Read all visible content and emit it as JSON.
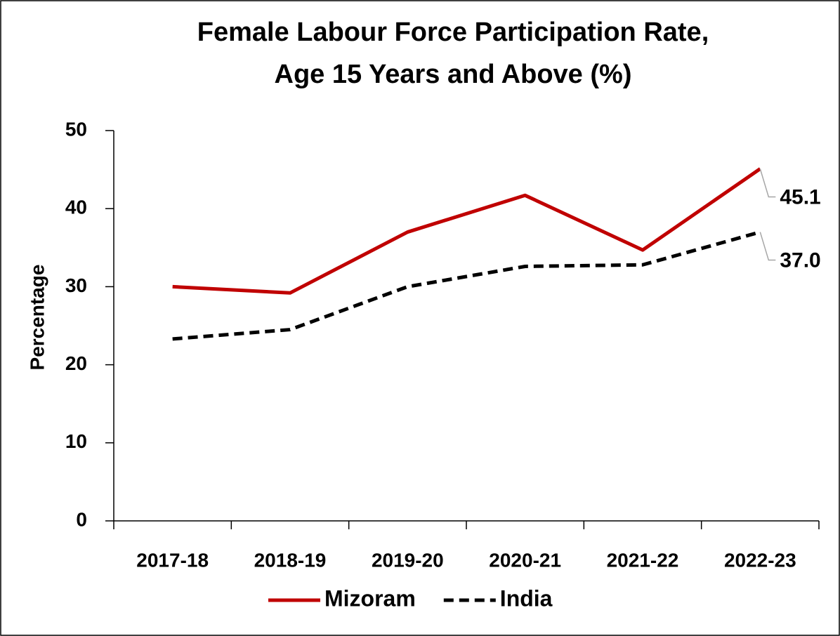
{
  "chart_data": {
    "type": "line",
    "title": [
      "Female Labour Force Participation Rate,",
      "Age 15 Years and Above (%)"
    ],
    "y_label": "Percentage",
    "categories": [
      "2017-18",
      "2018-19",
      "2019-20",
      "2020-21",
      "2021-22",
      "2022-23"
    ],
    "series": [
      {
        "name": "Mizoram",
        "color": "#c00000",
        "dash": false,
        "values": [
          30.0,
          29.2,
          37.0,
          41.7,
          34.7,
          45.1
        ],
        "value_labels": [
          null,
          null,
          null,
          null,
          null,
          "45.1"
        ]
      },
      {
        "name": "India",
        "color": "#000000",
        "dash": true,
        "values": [
          23.3,
          24.5,
          30.0,
          32.6,
          32.8,
          37.0
        ],
        "value_labels": [
          null,
          null,
          null,
          null,
          null,
          "37.0"
        ]
      }
    ],
    "ylim": [
      0,
      50
    ],
    "yticks": [
      0,
      10,
      20,
      30,
      40,
      50
    ],
    "grid": false,
    "legend": "bottom"
  }
}
